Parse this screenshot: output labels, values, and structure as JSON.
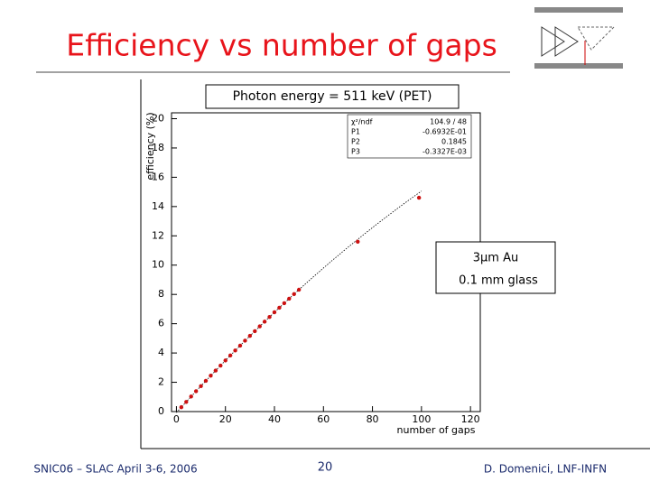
{
  "slide": {
    "title": "Efficiency vs number of gaps",
    "footer_left": "SNIC06 – SLAC April 3-6, 2006",
    "page": "20",
    "footer_right": "D. Domenici, LNF-INFN"
  },
  "chart_data": {
    "type": "scatter",
    "annotation": "Photon energy = 511 keV (PET)",
    "x_label": "number of gaps",
    "y_label": "efficiency (%)",
    "legend_lines": [
      "3μm Au",
      "0.1 mm glass"
    ],
    "color": "#cc1111",
    "x": [
      2,
      4,
      6,
      8,
      10,
      12,
      14,
      16,
      18,
      20,
      22,
      24,
      26,
      28,
      30,
      32,
      34,
      36,
      38,
      40,
      42,
      44,
      46,
      48,
      50,
      74,
      99
    ],
    "values": [
      0.3,
      0.66,
      1.03,
      1.39,
      1.74,
      2.1,
      2.45,
      2.8,
      3.14,
      3.49,
      3.83,
      4.17,
      4.5,
      4.84,
      5.17,
      5.49,
      5.82,
      6.14,
      6.46,
      6.78,
      7.09,
      7.4,
      7.71,
      8.02,
      8.32,
      11.6,
      14.6
    ],
    "xlim": [
      -2,
      124
    ],
    "ylim": [
      0,
      20.4
    ],
    "xticks": [
      0,
      20,
      40,
      60,
      80,
      100,
      120
    ],
    "yticks": [
      0,
      2,
      4,
      6,
      8,
      10,
      12,
      14,
      16,
      18,
      20
    ],
    "fit": {
      "chi2_name": "χ²/ndf",
      "chi2": "104.9 / 48",
      "params": [
        {
          "name": "P1",
          "value": -0.06932,
          "label": "-0.6932E-01"
        },
        {
          "name": "P2",
          "value": 0.1845,
          "label": "0.1845"
        },
        {
          "name": "P3",
          "value": -0.0003327,
          "label": "-0.3327E-03"
        }
      ],
      "xrange": [
        0,
        100
      ]
    }
  }
}
